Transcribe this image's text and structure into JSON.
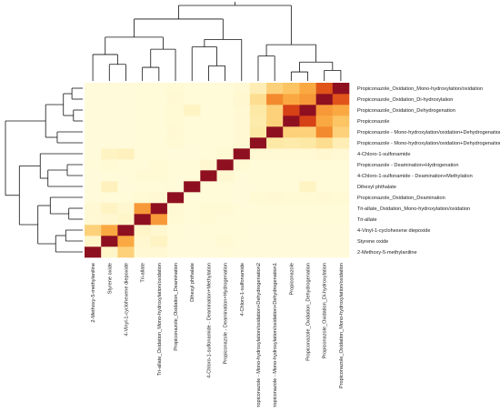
{
  "chart_data": {
    "type": "heatmap",
    "title": "",
    "labels": [
      "2-Methoxy-5-methylaniline",
      "Styrene oxide",
      "4-Vinyl-1-cyclohexene diepoxide",
      "Tri-allate",
      "Tri-allate_Oxidation_Mono-hydroxylation/oxidation",
      "Propiconazole_Oxidation_Deamination",
      "Dihexyl phthalate",
      "4-Chloro-1-sulfonamide - Deamination+Methylation",
      "Propiconazole - Deamination+Hydrogenation",
      "4-Chloro-1-sulfonamide",
      "Propiconazole - Mono-hydroxylation/oxidation+Dehydrogenation2",
      "Propiconazole - Mono-hydroxylation/oxidation+Dehydrogenation1",
      "Propiconazole",
      "Propiconazole_Oxidation_Dehydrogenation",
      "Propiconazole_Oxidation_Di-hydroxylation",
      "Propiconazole_Oxidation_Mono-hydroxylation/oxidation"
    ],
    "values": [
      [
        1.0,
        0.08,
        0.3,
        0.05,
        0.05,
        0.02,
        0.02,
        0.02,
        0.03,
        0.02,
        0.02,
        0.02,
        0.02,
        0.02,
        0.02,
        0.02
      ],
      [
        0.08,
        1.0,
        0.45,
        0.06,
        0.1,
        0.03,
        0.02,
        0.03,
        0.04,
        0.03,
        0.02,
        0.02,
        0.02,
        0.02,
        0.02,
        0.02
      ],
      [
        0.3,
        0.45,
        1.0,
        0.08,
        0.06,
        0.03,
        0.02,
        0.03,
        0.03,
        0.03,
        0.02,
        0.02,
        0.02,
        0.02,
        0.02,
        0.02
      ],
      [
        0.05,
        0.06,
        0.08,
        1.0,
        0.5,
        0.04,
        0.03,
        0.04,
        0.03,
        0.03,
        0.03,
        0.03,
        0.03,
        0.03,
        0.03,
        0.03
      ],
      [
        0.05,
        0.1,
        0.06,
        0.5,
        1.0,
        0.05,
        0.03,
        0.04,
        0.04,
        0.03,
        0.03,
        0.03,
        0.03,
        0.03,
        0.03,
        0.03
      ],
      [
        0.02,
        0.03,
        0.03,
        0.04,
        0.05,
        1.0,
        0.03,
        0.03,
        0.03,
        0.02,
        0.04,
        0.05,
        0.04,
        0.04,
        0.05,
        0.04
      ],
      [
        0.02,
        0.12,
        0.02,
        0.03,
        0.03,
        0.03,
        1.0,
        0.03,
        0.03,
        0.02,
        0.03,
        0.03,
        0.03,
        0.1,
        0.03,
        0.03
      ],
      [
        0.02,
        0.03,
        0.03,
        0.04,
        0.04,
        0.03,
        0.03,
        1.0,
        0.06,
        0.03,
        0.03,
        0.03,
        0.03,
        0.03,
        0.03,
        0.03
      ],
      [
        0.03,
        0.04,
        0.03,
        0.03,
        0.04,
        0.03,
        0.03,
        0.06,
        1.0,
        0.04,
        0.03,
        0.03,
        0.03,
        0.03,
        0.03,
        0.03
      ],
      [
        0.02,
        0.1,
        0.12,
        0.03,
        0.03,
        0.02,
        0.02,
        0.03,
        0.04,
        1.0,
        0.05,
        0.05,
        0.05,
        0.05,
        0.06,
        0.05
      ],
      [
        0.02,
        0.02,
        0.02,
        0.03,
        0.03,
        0.04,
        0.03,
        0.03,
        0.03,
        0.05,
        1.0,
        0.2,
        0.18,
        0.2,
        0.25,
        0.15
      ],
      [
        0.02,
        0.02,
        0.02,
        0.03,
        0.03,
        0.05,
        0.03,
        0.03,
        0.03,
        0.05,
        0.2,
        1.0,
        0.3,
        0.3,
        0.55,
        0.3
      ],
      [
        0.02,
        0.02,
        0.02,
        0.03,
        0.03,
        0.04,
        0.03,
        0.03,
        0.03,
        0.05,
        0.18,
        0.3,
        1.0,
        0.75,
        0.45,
        0.35
      ],
      [
        0.02,
        0.02,
        0.02,
        0.03,
        0.03,
        0.04,
        0.1,
        0.03,
        0.03,
        0.05,
        0.2,
        0.3,
        0.75,
        1.0,
        0.5,
        0.45
      ],
      [
        0.02,
        0.02,
        0.02,
        0.03,
        0.03,
        0.05,
        0.03,
        0.03,
        0.03,
        0.06,
        0.25,
        0.55,
        0.45,
        0.5,
        1.0,
        0.7
      ],
      [
        0.02,
        0.02,
        0.02,
        0.03,
        0.03,
        0.04,
        0.03,
        0.03,
        0.03,
        0.05,
        0.15,
        0.3,
        0.35,
        0.45,
        0.7,
        1.0
      ]
    ],
    "colormap": [
      "#fffde0",
      "#fde9a6",
      "#fdb84d",
      "#f07a22",
      "#cf2e12",
      "#8e1020"
    ],
    "dendrogram_top": true,
    "dendrogram_left": true,
    "legend": false,
    "grid": false
  }
}
